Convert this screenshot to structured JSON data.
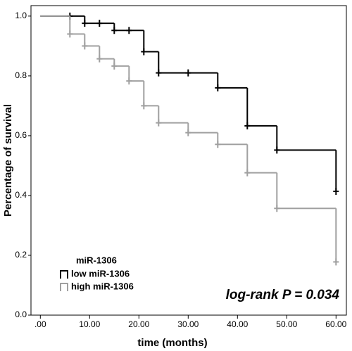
{
  "chart_data": {
    "type": "survival",
    "x_label": "time (months)",
    "y_label": "Percentage of survival",
    "legend_title": "miR-1306",
    "annotation": "log-rank P = 0.034",
    "xlim": [
      -1.9,
      62.1
    ],
    "ylim": [
      0,
      1.035
    ],
    "xticks": [
      {
        "value": 0,
        "label": ".00"
      },
      {
        "value": 10,
        "label": "10.00"
      },
      {
        "value": 20,
        "label": "20.00"
      },
      {
        "value": 30,
        "label": "30.00"
      },
      {
        "value": 40,
        "label": "40.00"
      },
      {
        "value": 50,
        "label": "50.00"
      },
      {
        "value": 60,
        "label": "60.00"
      }
    ],
    "yticks": [
      {
        "value": 0,
        "label": "0.0"
      },
      {
        "value": 0.2,
        "label": "0.2"
      },
      {
        "value": 0.4,
        "label": "0.4"
      },
      {
        "value": 0.6,
        "label": "0.6"
      },
      {
        "value": 0.8,
        "label": "0.8"
      },
      {
        "value": 1,
        "label": "1.0"
      }
    ],
    "series": [
      {
        "name": "low miR-1306",
        "color": "#000000",
        "x": [
          0,
          9,
          15,
          21,
          24,
          36,
          42,
          48,
          60
        ],
        "values": [
          1,
          0.976,
          0.952,
          0.881,
          0.81,
          0.76,
          0.633,
          0.552,
          0.414
        ],
        "censor_x": [
          6,
          9,
          12,
          15,
          18,
          21,
          24,
          30,
          36,
          42,
          48,
          60
        ],
        "censor_values": [
          1,
          0.976,
          0.976,
          0.952,
          0.952,
          0.881,
          0.81,
          0.81,
          0.76,
          0.633,
          0.552,
          0.414
        ]
      },
      {
        "name": "high miR-1306",
        "color": "#a0a0a0",
        "x": [
          0,
          6,
          9,
          12,
          15,
          18,
          21,
          24,
          30,
          36,
          42,
          48,
          60
        ],
        "values": [
          1,
          0.94,
          0.9,
          0.857,
          0.833,
          0.783,
          0.7,
          0.643,
          0.61,
          0.571,
          0.476,
          0.357,
          0.178
        ],
        "censor_x": [
          6,
          9,
          12,
          15,
          18,
          21,
          24,
          30,
          36,
          42,
          48,
          60
        ],
        "censor_values": [
          0.94,
          0.9,
          0.857,
          0.833,
          0.783,
          0.7,
          0.643,
          0.61,
          0.571,
          0.476,
          0.357,
          0.178
        ]
      }
    ]
  }
}
